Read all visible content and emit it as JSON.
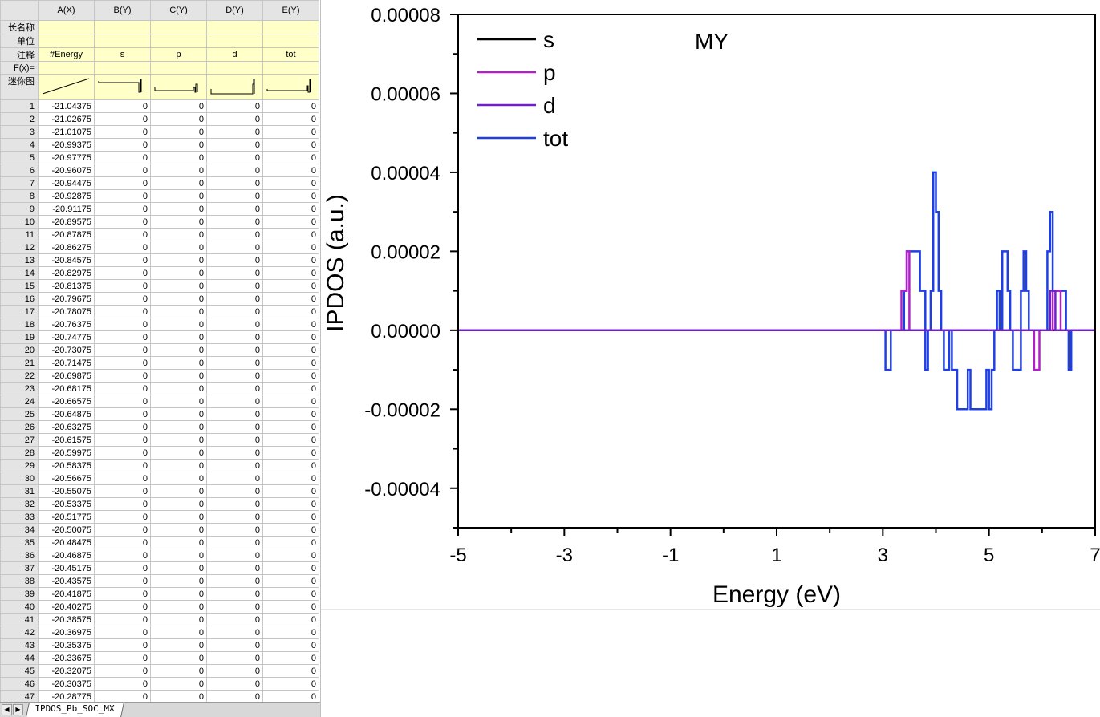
{
  "worksheet": {
    "columns": [
      "A(X)",
      "B(Y)",
      "C(Y)",
      "D(Y)",
      "E(Y)"
    ],
    "meta_rows": [
      {
        "label": "长名称",
        "values": [
          "",
          "",
          "",
          "",
          ""
        ]
      },
      {
        "label": "单位",
        "values": [
          "",
          "",
          "",
          "",
          ""
        ]
      },
      {
        "label": "注释",
        "values": [
          "#Energy",
          "s",
          "p",
          "d",
          "tot"
        ]
      },
      {
        "label": "F(x)=",
        "values": [
          "",
          "",
          "",
          "",
          ""
        ]
      }
    ],
    "sparkline_label": "迷你图",
    "rows": [
      {
        "n": "1",
        "a": "-21.04375",
        "b": "0",
        "c": "0",
        "d": "0",
        "e": "0"
      },
      {
        "n": "2",
        "a": "-21.02675",
        "b": "0",
        "c": "0",
        "d": "0",
        "e": "0"
      },
      {
        "n": "3",
        "a": "-21.01075",
        "b": "0",
        "c": "0",
        "d": "0",
        "e": "0"
      },
      {
        "n": "4",
        "a": "-20.99375",
        "b": "0",
        "c": "0",
        "d": "0",
        "e": "0"
      },
      {
        "n": "5",
        "a": "-20.97775",
        "b": "0",
        "c": "0",
        "d": "0",
        "e": "0"
      },
      {
        "n": "6",
        "a": "-20.96075",
        "b": "0",
        "c": "0",
        "d": "0",
        "e": "0"
      },
      {
        "n": "7",
        "a": "-20.94475",
        "b": "0",
        "c": "0",
        "d": "0",
        "e": "0"
      },
      {
        "n": "8",
        "a": "-20.92875",
        "b": "0",
        "c": "0",
        "d": "0",
        "e": "0"
      },
      {
        "n": "9",
        "a": "-20.91175",
        "b": "0",
        "c": "0",
        "d": "0",
        "e": "0"
      },
      {
        "n": "10",
        "a": "-20.89575",
        "b": "0",
        "c": "0",
        "d": "0",
        "e": "0"
      },
      {
        "n": "11",
        "a": "-20.87875",
        "b": "0",
        "c": "0",
        "d": "0",
        "e": "0"
      },
      {
        "n": "12",
        "a": "-20.86275",
        "b": "0",
        "c": "0",
        "d": "0",
        "e": "0"
      },
      {
        "n": "13",
        "a": "-20.84575",
        "b": "0",
        "c": "0",
        "d": "0",
        "e": "0"
      },
      {
        "n": "14",
        "a": "-20.82975",
        "b": "0",
        "c": "0",
        "d": "0",
        "e": "0"
      },
      {
        "n": "15",
        "a": "-20.81375",
        "b": "0",
        "c": "0",
        "d": "0",
        "e": "0"
      },
      {
        "n": "16",
        "a": "-20.79675",
        "b": "0",
        "c": "0",
        "d": "0",
        "e": "0"
      },
      {
        "n": "17",
        "a": "-20.78075",
        "b": "0",
        "c": "0",
        "d": "0",
        "e": "0"
      },
      {
        "n": "18",
        "a": "-20.76375",
        "b": "0",
        "c": "0",
        "d": "0",
        "e": "0"
      },
      {
        "n": "19",
        "a": "-20.74775",
        "b": "0",
        "c": "0",
        "d": "0",
        "e": "0"
      },
      {
        "n": "20",
        "a": "-20.73075",
        "b": "0",
        "c": "0",
        "d": "0",
        "e": "0"
      },
      {
        "n": "21",
        "a": "-20.71475",
        "b": "0",
        "c": "0",
        "d": "0",
        "e": "0"
      },
      {
        "n": "22",
        "a": "-20.69875",
        "b": "0",
        "c": "0",
        "d": "0",
        "e": "0"
      },
      {
        "n": "23",
        "a": "-20.68175",
        "b": "0",
        "c": "0",
        "d": "0",
        "e": "0"
      },
      {
        "n": "24",
        "a": "-20.66575",
        "b": "0",
        "c": "0",
        "d": "0",
        "e": "0"
      },
      {
        "n": "25",
        "a": "-20.64875",
        "b": "0",
        "c": "0",
        "d": "0",
        "e": "0"
      },
      {
        "n": "26",
        "a": "-20.63275",
        "b": "0",
        "c": "0",
        "d": "0",
        "e": "0"
      },
      {
        "n": "27",
        "a": "-20.61575",
        "b": "0",
        "c": "0",
        "d": "0",
        "e": "0"
      },
      {
        "n": "28",
        "a": "-20.59975",
        "b": "0",
        "c": "0",
        "d": "0",
        "e": "0"
      },
      {
        "n": "29",
        "a": "-20.58375",
        "b": "0",
        "c": "0",
        "d": "0",
        "e": "0"
      },
      {
        "n": "30",
        "a": "-20.56675",
        "b": "0",
        "c": "0",
        "d": "0",
        "e": "0"
      },
      {
        "n": "31",
        "a": "-20.55075",
        "b": "0",
        "c": "0",
        "d": "0",
        "e": "0"
      },
      {
        "n": "32",
        "a": "-20.53375",
        "b": "0",
        "c": "0",
        "d": "0",
        "e": "0"
      },
      {
        "n": "33",
        "a": "-20.51775",
        "b": "0",
        "c": "0",
        "d": "0",
        "e": "0"
      },
      {
        "n": "34",
        "a": "-20.50075",
        "b": "0",
        "c": "0",
        "d": "0",
        "e": "0"
      },
      {
        "n": "35",
        "a": "-20.48475",
        "b": "0",
        "c": "0",
        "d": "0",
        "e": "0"
      },
      {
        "n": "36",
        "a": "-20.46875",
        "b": "0",
        "c": "0",
        "d": "0",
        "e": "0"
      },
      {
        "n": "37",
        "a": "-20.45175",
        "b": "0",
        "c": "0",
        "d": "0",
        "e": "0"
      },
      {
        "n": "38",
        "a": "-20.43575",
        "b": "0",
        "c": "0",
        "d": "0",
        "e": "0"
      },
      {
        "n": "39",
        "a": "-20.41875",
        "b": "0",
        "c": "0",
        "d": "0",
        "e": "0"
      },
      {
        "n": "40",
        "a": "-20.40275",
        "b": "0",
        "c": "0",
        "d": "0",
        "e": "0"
      },
      {
        "n": "41",
        "a": "-20.38575",
        "b": "0",
        "c": "0",
        "d": "0",
        "e": "0"
      },
      {
        "n": "42",
        "a": "-20.36975",
        "b": "0",
        "c": "0",
        "d": "0",
        "e": "0"
      },
      {
        "n": "43",
        "a": "-20.35375",
        "b": "0",
        "c": "0",
        "d": "0",
        "e": "0"
      },
      {
        "n": "44",
        "a": "-20.33675",
        "b": "0",
        "c": "0",
        "d": "0",
        "e": "0"
      },
      {
        "n": "45",
        "a": "-20.32075",
        "b": "0",
        "c": "0",
        "d": "0",
        "e": "0"
      },
      {
        "n": "46",
        "a": "-20.30375",
        "b": "0",
        "c": "0",
        "d": "0",
        "e": "0"
      },
      {
        "n": "47",
        "a": "-20.28775",
        "b": "0",
        "c": "0",
        "d": "0",
        "e": "0"
      }
    ],
    "sheet_tab": "IPDOS_Pb_SOC_MX"
  },
  "chart_data": {
    "type": "line",
    "annotation": "MY",
    "xlabel": "Energy (eV)",
    "ylabel": "IPDOS (a.u.)",
    "xlim": [
      -5,
      7
    ],
    "ylim": [
      -5e-05,
      8e-05
    ],
    "x_ticks": [
      -5,
      -3,
      -1,
      1,
      3,
      5,
      7
    ],
    "x_tick_labels": [
      "-5",
      "-3",
      "-1",
      "1",
      "3",
      "5",
      "7"
    ],
    "y_ticks": [
      -4e-05,
      -2e-05,
      0,
      2e-05,
      4e-05,
      6e-05,
      8e-05
    ],
    "y_tick_labels": [
      "-0.00004",
      "-0.00002",
      "0.00000",
      "0.00002",
      "0.00004",
      "0.00006",
      "0.00008"
    ],
    "legend_position": "top-left",
    "grid": false,
    "series": [
      {
        "name": "s",
        "color": "#000000",
        "points": [
          [
            -5,
            0
          ],
          [
            7,
            0
          ]
        ]
      },
      {
        "name": "p",
        "color": "#b020c8",
        "points": [
          [
            -5,
            0
          ],
          [
            3.35,
            0
          ],
          [
            3.35,
            1e-05
          ],
          [
            3.45,
            1e-05
          ],
          [
            3.45,
            2e-05
          ],
          [
            3.5,
            2e-05
          ],
          [
            3.5,
            0
          ],
          [
            5.85,
            0
          ],
          [
            5.85,
            -1e-05
          ],
          [
            5.95,
            -1e-05
          ],
          [
            5.95,
            0
          ],
          [
            6.2,
            0
          ],
          [
            6.2,
            1e-05
          ],
          [
            6.35,
            1e-05
          ],
          [
            6.35,
            0
          ],
          [
            7,
            0
          ]
        ]
      },
      {
        "name": "d",
        "color": "#7020c8",
        "points": [
          [
            -5,
            0
          ],
          [
            6.15,
            0
          ],
          [
            6.15,
            1e-05
          ],
          [
            6.25,
            1e-05
          ],
          [
            6.25,
            0
          ],
          [
            7,
            0
          ]
        ]
      },
      {
        "name": "tot",
        "color": "#1f3fe6",
        "points": [
          [
            -5,
            0
          ],
          [
            3.05,
            0
          ],
          [
            3.05,
            -1e-05
          ],
          [
            3.15,
            -1e-05
          ],
          [
            3.15,
            0
          ],
          [
            3.4,
            0
          ],
          [
            3.4,
            1e-05
          ],
          [
            3.45,
            1e-05
          ],
          [
            3.45,
            2e-05
          ],
          [
            3.7,
            2e-05
          ],
          [
            3.7,
            1e-05
          ],
          [
            3.8,
            1e-05
          ],
          [
            3.8,
            -1e-05
          ],
          [
            3.85,
            -1e-05
          ],
          [
            3.85,
            0
          ],
          [
            3.9,
            0
          ],
          [
            3.9,
            1e-05
          ],
          [
            3.95,
            1e-05
          ],
          [
            3.95,
            4e-05
          ],
          [
            4.0,
            4e-05
          ],
          [
            4.0,
            3e-05
          ],
          [
            4.05,
            3e-05
          ],
          [
            4.05,
            1e-05
          ],
          [
            4.1,
            1e-05
          ],
          [
            4.1,
            0
          ],
          [
            4.15,
            0
          ],
          [
            4.15,
            -1e-05
          ],
          [
            4.25,
            -1e-05
          ],
          [
            4.25,
            0
          ],
          [
            4.3,
            0
          ],
          [
            4.3,
            -1e-05
          ],
          [
            4.35,
            -1e-05
          ],
          [
            4.35,
            -1e-05
          ],
          [
            4.4,
            -1e-05
          ],
          [
            4.4,
            -2e-05
          ],
          [
            4.6,
            -2e-05
          ],
          [
            4.6,
            -1e-05
          ],
          [
            4.65,
            -1e-05
          ],
          [
            4.65,
            -2e-05
          ],
          [
            4.95,
            -2e-05
          ],
          [
            4.95,
            -1e-05
          ],
          [
            5.0,
            -1e-05
          ],
          [
            5.0,
            -2e-05
          ],
          [
            5.05,
            -2e-05
          ],
          [
            5.05,
            -1e-05
          ],
          [
            5.1,
            -1e-05
          ],
          [
            5.1,
            0
          ],
          [
            5.15,
            0
          ],
          [
            5.15,
            1e-05
          ],
          [
            5.2,
            1e-05
          ],
          [
            5.2,
            0
          ],
          [
            5.25,
            0
          ],
          [
            5.25,
            2e-05
          ],
          [
            5.35,
            2e-05
          ],
          [
            5.35,
            1e-05
          ],
          [
            5.4,
            1e-05
          ],
          [
            5.4,
            0
          ],
          [
            5.45,
            0
          ],
          [
            5.45,
            -1e-05
          ],
          [
            5.6,
            -1e-05
          ],
          [
            5.6,
            1e-05
          ],
          [
            5.65,
            1e-05
          ],
          [
            5.65,
            2e-05
          ],
          [
            5.7,
            2e-05
          ],
          [
            5.7,
            1e-05
          ],
          [
            5.75,
            1e-05
          ],
          [
            5.75,
            0
          ],
          [
            6.1,
            0
          ],
          [
            6.1,
            2e-05
          ],
          [
            6.15,
            2e-05
          ],
          [
            6.15,
            3e-05
          ],
          [
            6.2,
            3e-05
          ],
          [
            6.2,
            1e-05
          ],
          [
            6.45,
            1e-05
          ],
          [
            6.45,
            0
          ],
          [
            6.5,
            0
          ],
          [
            6.5,
            -1e-05
          ],
          [
            6.55,
            -1e-05
          ],
          [
            6.55,
            0
          ],
          [
            7,
            0
          ]
        ]
      }
    ]
  }
}
